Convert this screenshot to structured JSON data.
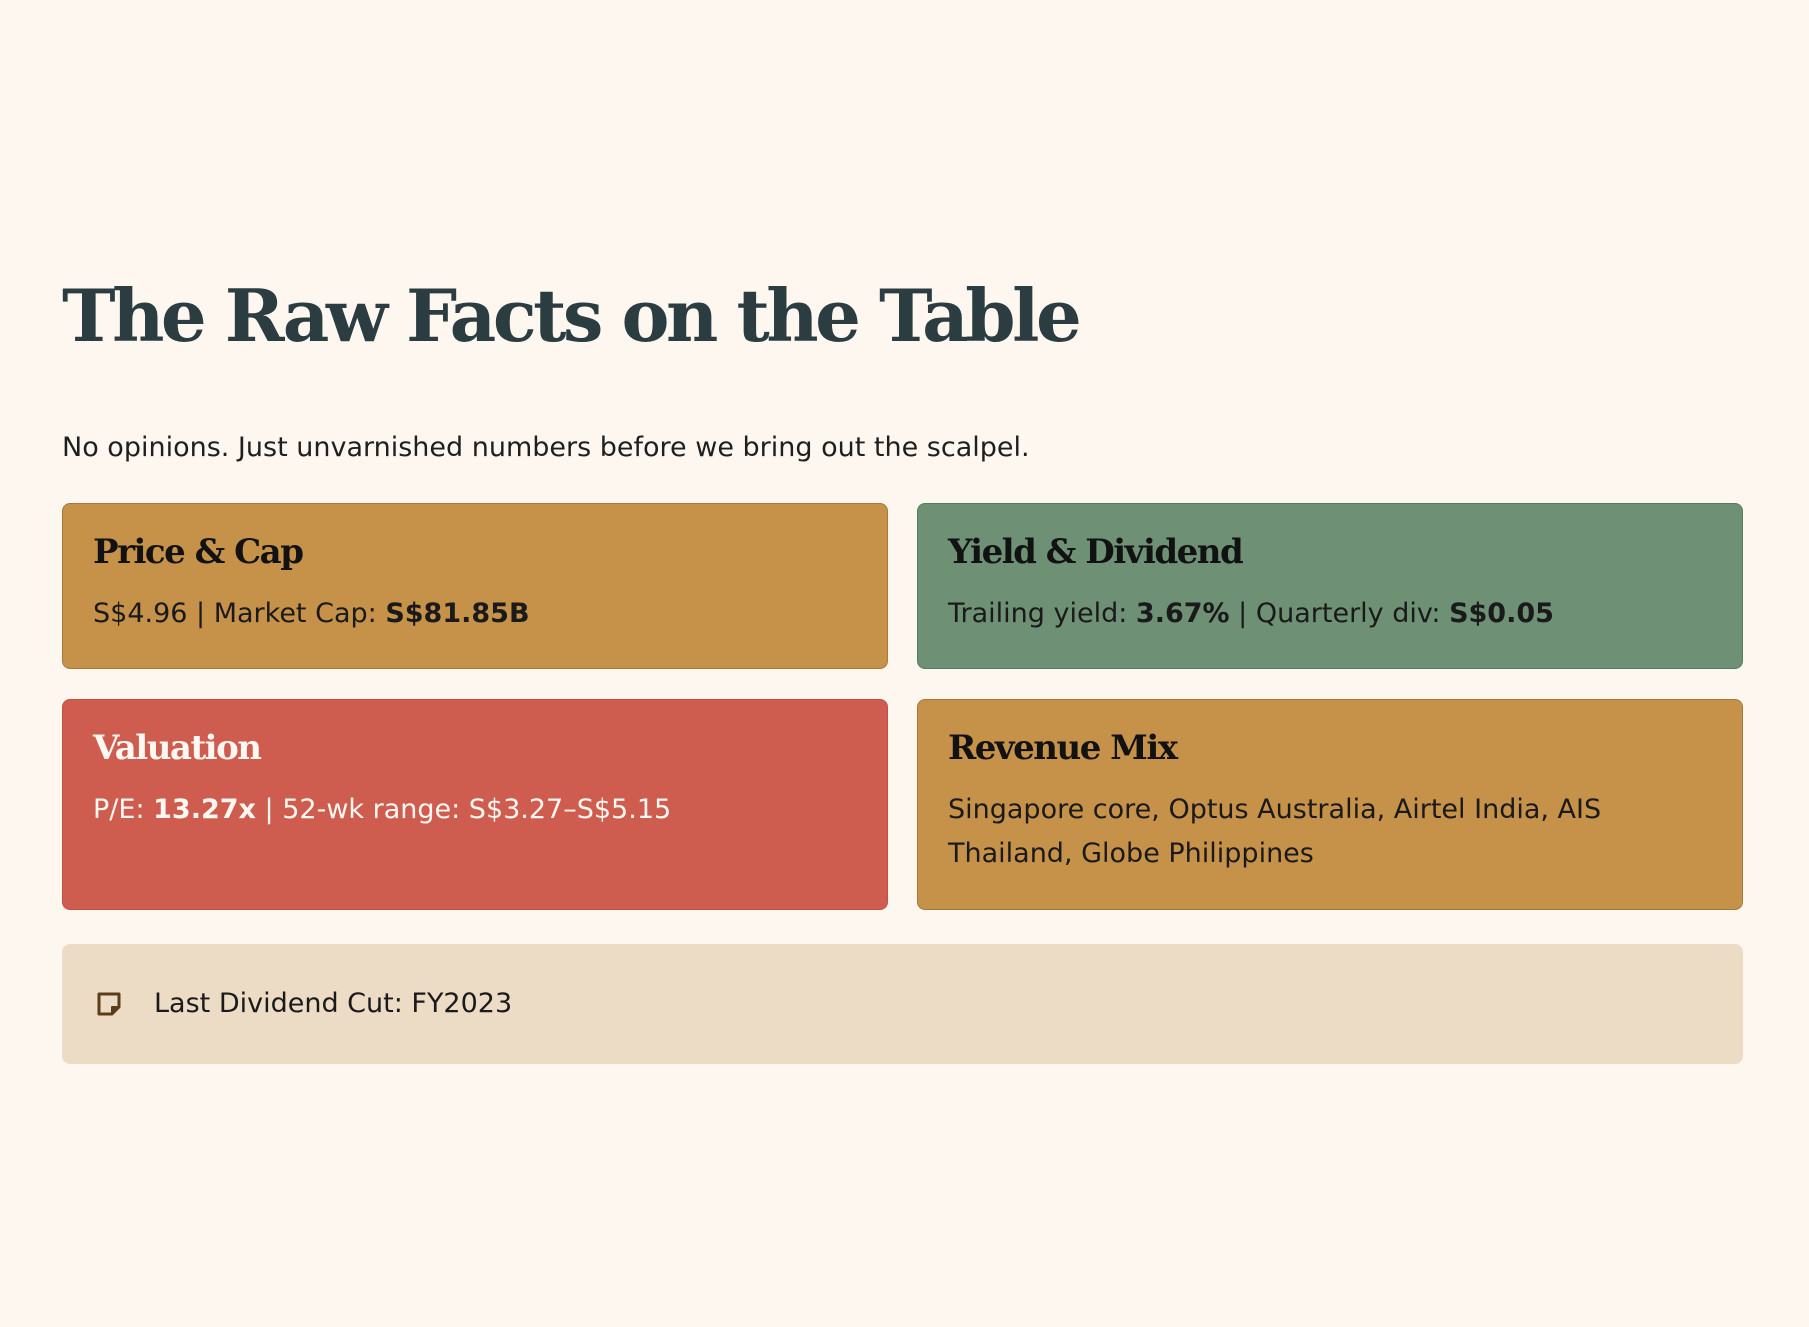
{
  "header": {
    "title": "The Raw Facts on the Table",
    "subtitle": "No opinions. Just unvarnished numbers before we bring out the scalpel."
  },
  "cards": {
    "price": {
      "title": "Price & Cap",
      "price": "S$4.96",
      "separator": " | ",
      "cap_label": "Market Cap: ",
      "cap_value": "S$81.85B",
      "color": "#c6924a"
    },
    "yield": {
      "title": "Yield & Dividend",
      "yield_label": "Trailing yield: ",
      "yield_value": "3.67%",
      "separator": " | ",
      "div_label": "Quarterly div: ",
      "div_value": "S$0.05",
      "color": "#6e9075"
    },
    "valuation": {
      "title": "Valuation",
      "pe_label": "P/E: ",
      "pe_value": "13.27x",
      "separator": " | ",
      "range_text": "52-wk range: S$3.27–S$5.15",
      "color": "#cf5d4f"
    },
    "revenue": {
      "title": "Revenue Mix",
      "text": "Singapore core, Optus Australia, Airtel India, AIS Thailand, Globe Philippines",
      "color": "#c6924a"
    }
  },
  "note": {
    "icon": "sticky-note-icon",
    "text": "Last Dividend Cut: FY2023",
    "background": "#ecdcc5"
  }
}
